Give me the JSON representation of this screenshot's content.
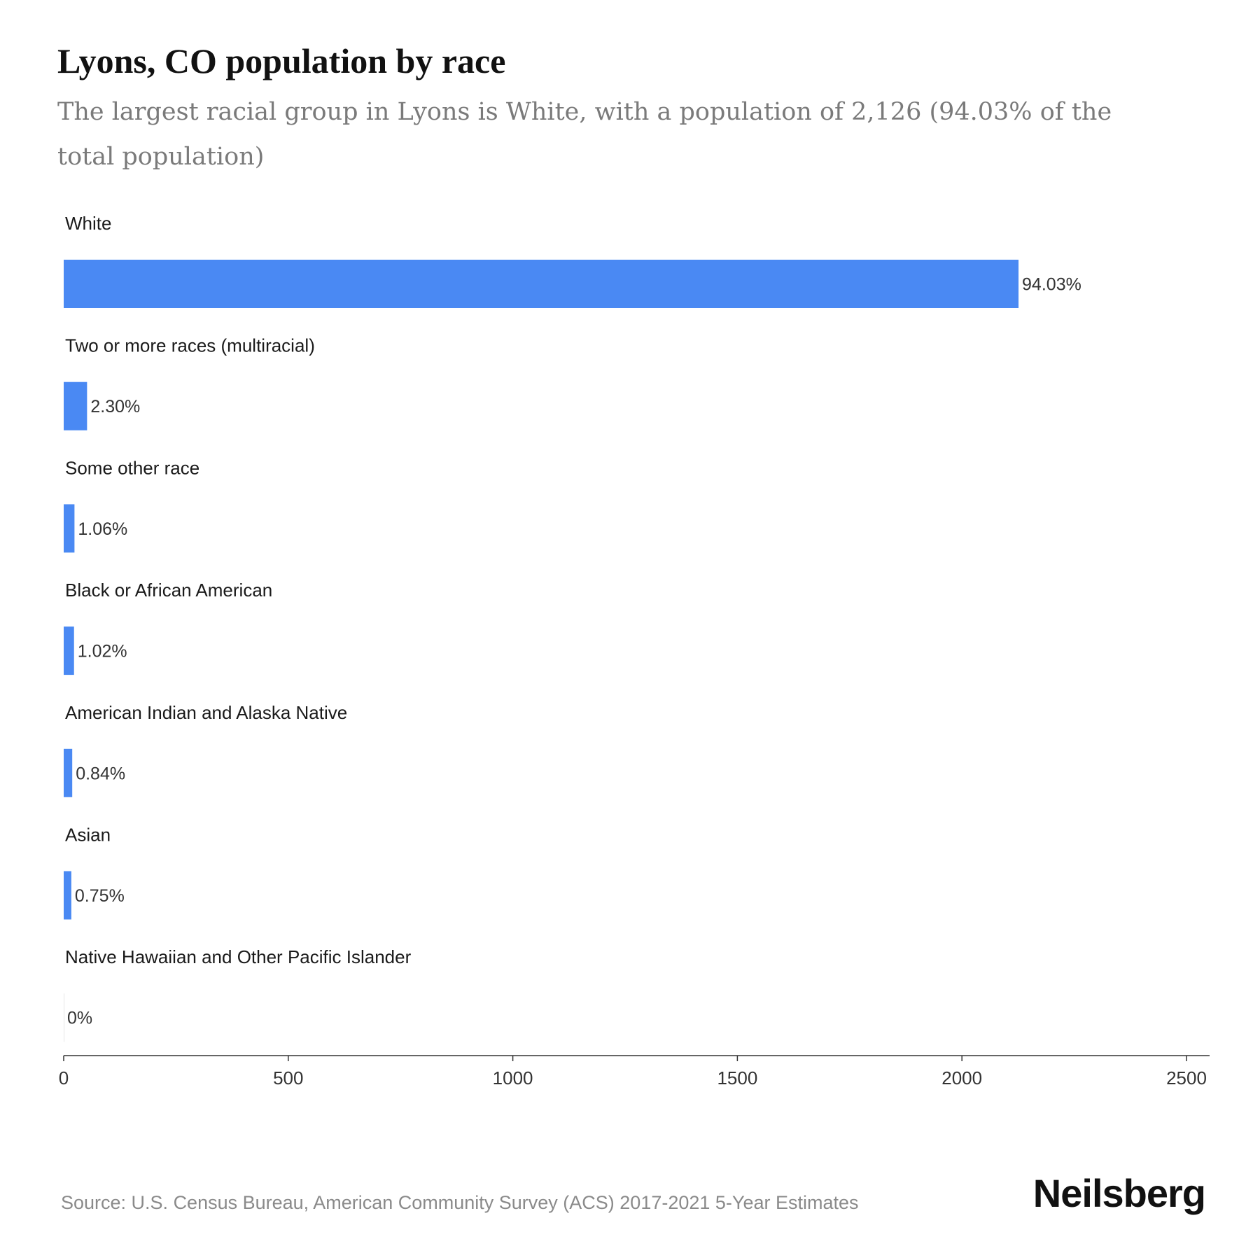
{
  "chart_data": {
    "type": "bar",
    "orientation": "horizontal",
    "title": "Lyons, CO population by race",
    "subtitle": "The largest racial group in Lyons is White, with a population of 2,126 (94.03% of the total population)",
    "categories": [
      "White",
      "Two or more races (multiracial)",
      "Some other race",
      "Black or African American",
      "American Indian and Alaska Native",
      "Asian",
      "Native Hawaiian and Other Pacific Islander"
    ],
    "values": [
      2126,
      52,
      24,
      23,
      19,
      17,
      0
    ],
    "value_labels": [
      "94.03%",
      "2.30%",
      "1.06%",
      "1.02%",
      "0.84%",
      "0.75%",
      "0%"
    ],
    "xlim": [
      0,
      2500
    ],
    "x_ticks": [
      0,
      500,
      1000,
      1500,
      2000,
      2500
    ],
    "x_tick_labels": [
      "0",
      "500",
      "1000",
      "1500",
      "2000",
      "2500"
    ],
    "bar_color": "#4a89f3",
    "grid": false,
    "legend": "none"
  },
  "footer": {
    "source": "Source: U.S. Census Bureau, American Community Survey (ACS) 2017-2021 5-Year Estimates",
    "brand": "Neilsberg"
  }
}
